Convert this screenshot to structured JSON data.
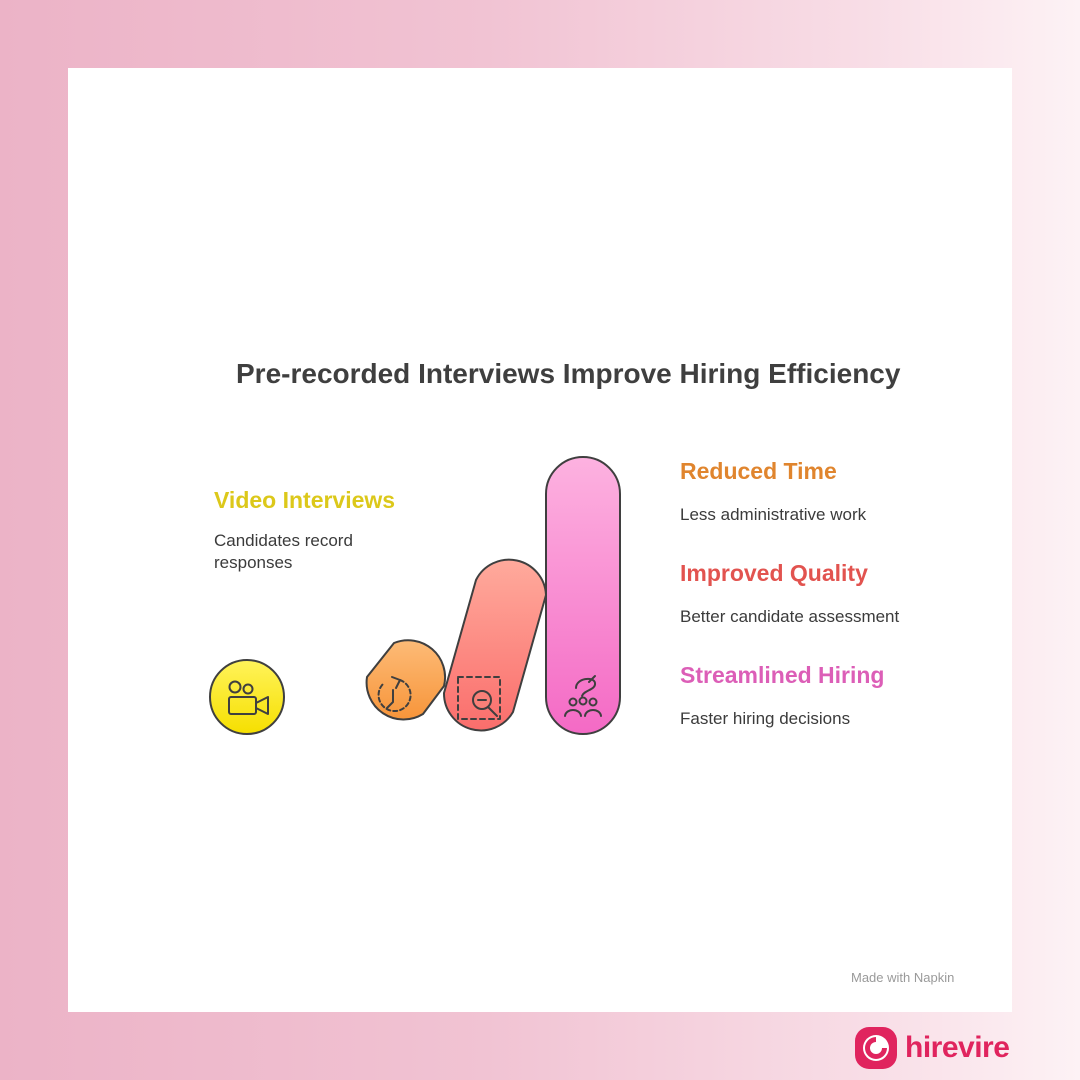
{
  "title": "Pre-recorded Interviews Improve Hiring Efficiency",
  "items": [
    {
      "heading": "Video Interviews",
      "description": "Candidates record responses",
      "icon": "video-camera-icon",
      "color": "#dcc81a"
    },
    {
      "heading": "Reduced Time",
      "description": "Less administrative work",
      "icon": "timer-icon",
      "color": "#e0852e"
    },
    {
      "heading": "Improved Quality",
      "description": "Better candidate assessment",
      "icon": "magnify-icon",
      "color": "#e2534f"
    },
    {
      "heading": "Streamlined Hiring",
      "description": "Faster hiring decisions",
      "icon": "team-icon",
      "color": "#dc5eb7"
    }
  ],
  "watermark": "Made with Napkin",
  "brand": "hirevire"
}
